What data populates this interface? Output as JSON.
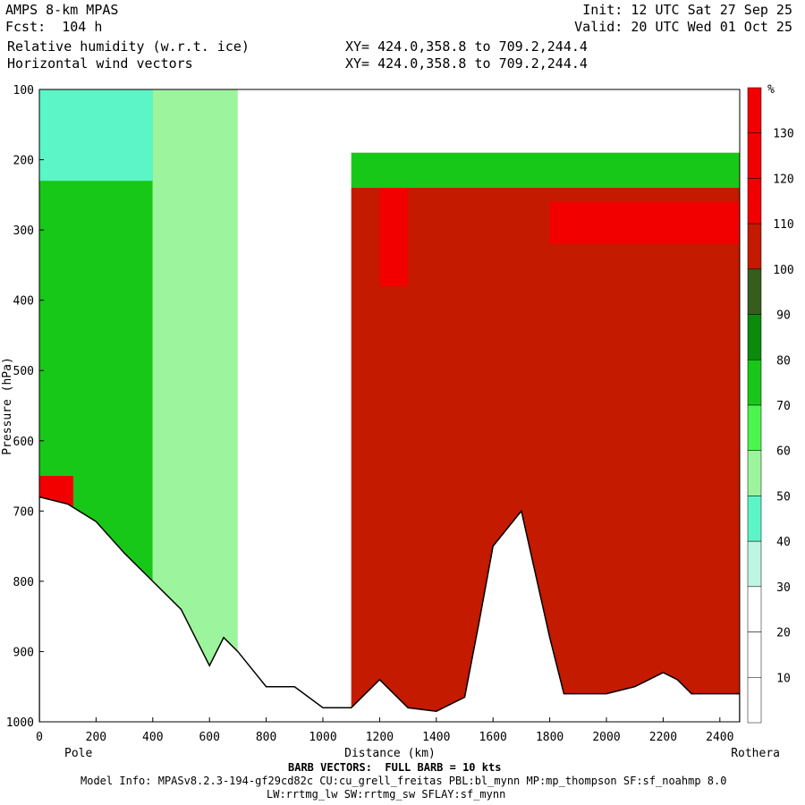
{
  "header": {
    "model": "AMPS 8-km MPAS",
    "forecast": "Fcst:  104 h",
    "field1": "Relative humidity (w.r.t. ice)",
    "field2": "Horizontal wind vectors",
    "init": "Init: 12 UTC Sat 27 Sep 25",
    "valid": "Valid: 20 UTC Wed 01 Oct 25",
    "xy1": "XY= 424.0,358.8 to 709.2,244.4",
    "xy2": "XY= 424.0,358.8 to 709.2,244.4"
  },
  "footer": {
    "barb_note": "BARB VECTORS:  FULL BARB = 10 kts",
    "model_info": "Model Info: MPASv8.2.3-194-gf29cd82c CU:cu_grell_freitas PBL:bl_mynn MP:mp_thompson SF:sf_noahmp 8.0",
    "model_info2": "LW:rrtmg_lw SW:rrtmg_sw SFLAY:sf_mynn"
  },
  "colors": {
    "c0": "#ffffff",
    "c1": "#ffffff",
    "c2": "#ffffff",
    "c3": "#bdf5e3",
    "c4": "#5cf5c7",
    "c5": "#9cf59c",
    "c6": "#4cf54c",
    "c7": "#18c818",
    "c8": "#0c8a0c",
    "c9": "#375d1c",
    "c10": "#c41a00",
    "c11": "#f20000",
    "terrain": "#ffffff"
  },
  "chart_data": {
    "type": "heatmap",
    "xlabel": "Distance (km)",
    "ylabel": "Pressure (hPa)",
    "x_start_label": "Pole",
    "x_end_label": "Rothera",
    "xlim": [
      0,
      2470
    ],
    "ylim": [
      1000,
      100
    ],
    "x_ticks": [
      "0",
      "200",
      "400",
      "600",
      "800",
      "1000",
      "1200",
      "1400",
      "1600",
      "1800",
      "2000",
      "2200",
      "2400"
    ],
    "y_ticks": [
      "100",
      "200",
      "300",
      "400",
      "500",
      "600",
      "700",
      "800",
      "900",
      "1000"
    ],
    "colorbar": {
      "unit": "%",
      "labels": [
        "10",
        "20",
        "30",
        "40",
        "50",
        "60",
        "70",
        "80",
        "90",
        "100",
        "110",
        "120",
        "130"
      ],
      "levels": [
        0,
        10,
        20,
        30,
        40,
        50,
        60,
        70,
        80,
        90,
        100,
        110,
        120,
        140
      ]
    },
    "regions": [
      {
        "x0": 0,
        "x1": 400,
        "p0": 100,
        "p1": 1000,
        "rh": 75
      },
      {
        "x0": 400,
        "x1": 700,
        "p0": 100,
        "p1": 1000,
        "rh": 55
      },
      {
        "x0": 700,
        "x1": 1100,
        "p0": 100,
        "p1": 1000,
        "rh": 15
      },
      {
        "x0": 1100,
        "x1": 2470,
        "p0": 100,
        "p1": 190,
        "rh": 15
      },
      {
        "x0": 1100,
        "x1": 2470,
        "p0": 190,
        "p1": 240,
        "rh": 75
      },
      {
        "x0": 1100,
        "x1": 2470,
        "p0": 240,
        "p1": 1000,
        "rh": 102
      },
      {
        "x0": 1200,
        "x1": 1300,
        "p0": 240,
        "p1": 380,
        "rh": 115
      },
      {
        "x0": 1800,
        "x1": 2470,
        "p0": 260,
        "p1": 320,
        "rh": 115
      },
      {
        "x0": 0,
        "x1": 120,
        "p0": 650,
        "p1": 700,
        "rh": 120
      },
      {
        "x0": 0,
        "x1": 400,
        "p0": 100,
        "p1": 230,
        "rh": 45
      }
    ],
    "terrain": {
      "x": [
        0,
        100,
        200,
        300,
        400,
        500,
        600,
        650,
        700,
        800,
        900,
        1000,
        1100,
        1200,
        1300,
        1400,
        1500,
        1550,
        1600,
        1700,
        1800,
        1850,
        1900,
        2000,
        2100,
        2200,
        2250,
        2300,
        2400,
        2470
      ],
      "p": [
        680,
        690,
        715,
        760,
        800,
        840,
        920,
        880,
        900,
        950,
        950,
        980,
        980,
        940,
        980,
        985,
        965,
        860,
        750,
        700,
        880,
        960,
        960,
        960,
        950,
        930,
        940,
        960,
        960,
        960
      ]
    }
  }
}
